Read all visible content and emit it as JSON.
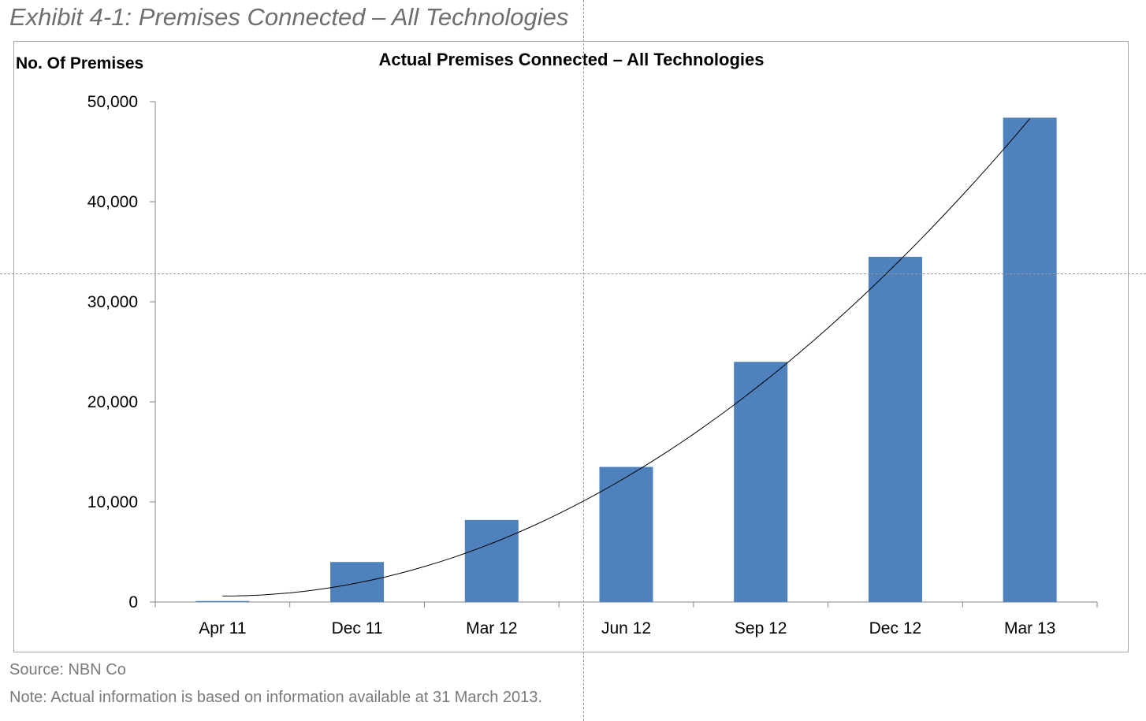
{
  "exhibit": {
    "title": "Exhibit 4-1: Premises Connected – All Technologies"
  },
  "source": "Source: NBN Co",
  "note": "Note: Actual information is based on information available at 31 March 2013.",
  "chart_data": {
    "type": "bar",
    "title": "Actual Premises Connected – All Technologies",
    "xlabel": "",
    "ylabel": "No. Of Premises",
    "categories": [
      "Apr 11",
      "Dec 11",
      "Mar 12",
      "Jun 12",
      "Sep 12",
      "Dec 12",
      "Mar 13"
    ],
    "values": [
      100,
      4000,
      8200,
      13500,
      24000,
      34500,
      48400
    ],
    "ylim": [
      0,
      50000
    ],
    "yticks": [
      0,
      10000,
      20000,
      30000,
      40000,
      50000
    ],
    "ytick_labels": [
      "0",
      "10,000",
      "20,000",
      "30,000",
      "40,000",
      "50,000"
    ],
    "trendline": {
      "type": "polynomial",
      "start_value": 600,
      "end_value": 48300
    },
    "grid": false,
    "legend": "none",
    "bar_color": "#4f81bd",
    "trend_color": "#000000"
  }
}
